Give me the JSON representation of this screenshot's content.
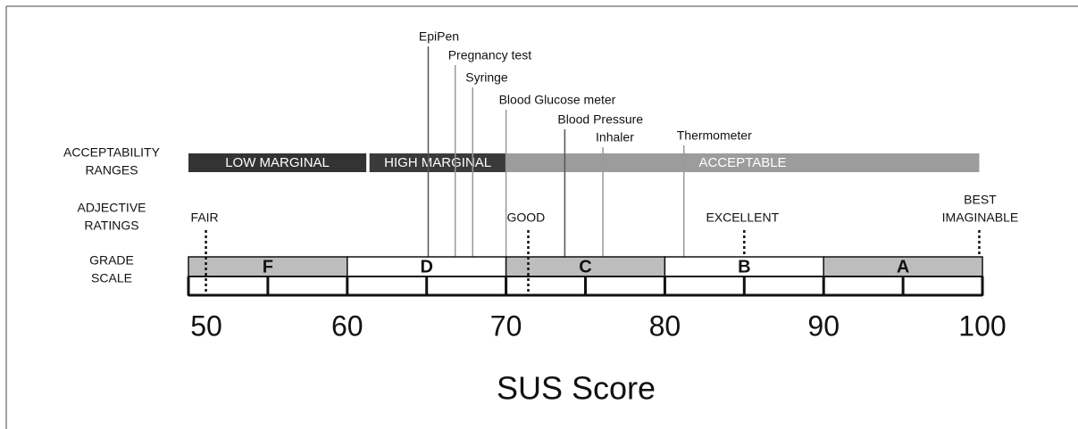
{
  "chart_data": {
    "type": "scale",
    "x_label": "SUS Score",
    "xlim": [
      50,
      100
    ],
    "xticks": [
      50,
      60,
      70,
      80,
      90,
      100
    ],
    "minor_ticks": [
      55,
      65,
      75,
      85,
      95
    ],
    "row_labels": [
      [
        "ACCEPTABILITY",
        "RANGES"
      ],
      [
        "ADJECTIVE",
        "RATINGS"
      ],
      [
        "GRADE",
        "SCALE"
      ]
    ],
    "acceptability": [
      {
        "name": "LOW  MARGINAL",
        "from": 50,
        "to": 61.2,
        "color": "#333333"
      },
      {
        "name": "HIGH MARGINAL",
        "from": 61.4,
        "to": 70,
        "color": "#3a3a3a"
      },
      {
        "name": "ACCEPTABLE",
        "from": 70,
        "to": 99.8,
        "color": "#9c9c9c"
      }
    ],
    "adjectives": [
      {
        "name": [
          "FAIR"
        ],
        "value": 51.1
      },
      {
        "name": [
          "GOOD"
        ],
        "value": 71.4
      },
      {
        "name": [
          "EXCELLENT"
        ],
        "value": 85
      },
      {
        "name": [
          "BEST",
          "IMAGINABLE"
        ],
        "value": 99.8
      }
    ],
    "grades": [
      {
        "name": "F",
        "from": 50,
        "to": 60,
        "color": "#bdbdbd"
      },
      {
        "name": "D",
        "from": 60,
        "to": 70,
        "color": "#ffffff"
      },
      {
        "name": "C",
        "from": 70,
        "to": 80,
        "color": "#bdbdbd"
      },
      {
        "name": "B",
        "from": 80,
        "to": 90,
        "color": "#ffffff"
      },
      {
        "name": "A",
        "from": 90,
        "to": 100,
        "color": "#bdbdbd"
      }
    ],
    "devices": [
      {
        "name": "EpiPen",
        "value": 65.1
      },
      {
        "name": "Pregnancy test",
        "value": 66.8
      },
      {
        "name": "Syringe",
        "value": 67.9
      },
      {
        "name": "Blood Glucose meter",
        "value": 70
      },
      {
        "name": "Blood Pressure",
        "value": 73.7
      },
      {
        "name": "Inhaler",
        "value": 76.1
      },
      {
        "name": "Thermometer",
        "value": 81.2
      }
    ]
  }
}
